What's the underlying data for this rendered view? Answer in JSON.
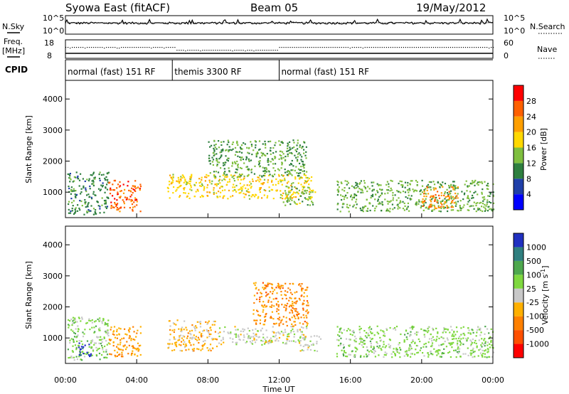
{
  "header": {
    "station": "Syowa East (fitACF)",
    "beam": "Beam 05",
    "date": "19/May/2012"
  },
  "noise_panel": {
    "left_label": "N.Sky",
    "right_label": "N.Search",
    "left_ticks": [
      "10^5",
      "10^0"
    ],
    "right_ticks": [
      "10^5",
      "10^0"
    ]
  },
  "freq_panel": {
    "left_label_line1": "Freq.",
    "left_label_line2": "[MHz]",
    "right_label": "Nave",
    "left_ticks": [
      "18",
      "8"
    ],
    "right_ticks": [
      "60",
      "0"
    ]
  },
  "cpid_panel": {
    "label": "CPID",
    "segments": [
      {
        "text": "normal (fast) 151 RF",
        "start_h": 0,
        "end_h": 6
      },
      {
        "text": "themis 3300 RF",
        "start_h": 6,
        "end_h": 12
      },
      {
        "text": "normal (fast) 151 RF",
        "start_h": 12,
        "end_h": 24
      }
    ]
  },
  "time_axis": {
    "label": "Time UT",
    "ticks": [
      "00:00",
      "04:00",
      "08:00",
      "12:00",
      "16:00",
      "20:00",
      "00:00"
    ]
  },
  "range_axis": {
    "label": "Slant Range [km]",
    "ticks": [
      "4000",
      "3000",
      "2000",
      "1000"
    ]
  },
  "power_colorbar": {
    "label": "Power [dB]",
    "ticks": [
      "28",
      "24",
      "20",
      "16",
      "12",
      "8",
      "4"
    ],
    "colors": [
      "#0000ff",
      "#1f3fa8",
      "#2e7f3f",
      "#7fbf3f",
      "#ffd800",
      "#ff9f00",
      "#ff6000",
      "#ff0000"
    ]
  },
  "velocity_colorbar": {
    "label": "Velocity [m s",
    "label_sup": "-1",
    "label_end": "]",
    "ticks": [
      "1000",
      "500",
      "100",
      "25",
      "-25",
      "-100",
      "-500",
      "-1000"
    ],
    "colors": [
      "#2030c0",
      "#2f7f7f",
      "#4ea84e",
      "#7fd83f",
      "#c8c8c8",
      "#ffb000",
      "#ff8000",
      "#ff5000",
      "#ff0000"
    ]
  },
  "chart_data": [
    {
      "type": "heatmap",
      "title": "Power",
      "xlabel": "Time UT",
      "ylabel": "Slant Range [km]",
      "xlim": [
        0,
        24
      ],
      "ylim": [
        180,
        4600
      ],
      "colorbar_label": "Power [dB]",
      "colorbar_range": [
        0,
        32
      ],
      "regions": [
        {
          "t0": 0.1,
          "t1": 2.4,
          "r0": 300,
          "r1": 1700,
          "value": 10
        },
        {
          "t0": 2.4,
          "t1": 4.2,
          "r0": 400,
          "r1": 1400,
          "value": 26
        },
        {
          "t0": 5.7,
          "t1": 13.8,
          "r0": 800,
          "r1": 1600,
          "value": 18
        },
        {
          "t0": 8.0,
          "t1": 13.5,
          "r0": 1500,
          "r1": 2700,
          "value": 12
        },
        {
          "t0": 12.2,
          "t1": 14.0,
          "r0": 600,
          "r1": 1200,
          "value": 14
        },
        {
          "t0": 15.2,
          "t1": 24.0,
          "r0": 400,
          "r1": 1400,
          "value": 13
        },
        {
          "t0": 20.0,
          "t1": 22.0,
          "r0": 500,
          "r1": 1200,
          "value": 24
        }
      ]
    },
    {
      "type": "heatmap",
      "title": "Velocity",
      "xlabel": "Time UT",
      "ylabel": "Slant Range [km]",
      "xlim": [
        0,
        24
      ],
      "ylim": [
        180,
        4600
      ],
      "colorbar_label": "Velocity [m s-1]",
      "colorbar_range": [
        -1000,
        1000
      ],
      "regions": [
        {
          "t0": 0.1,
          "t1": 2.4,
          "r0": 300,
          "r1": 1700,
          "value": 200
        },
        {
          "t0": 0.7,
          "t1": 1.4,
          "r0": 400,
          "r1": 900,
          "value": 900
        },
        {
          "t0": 2.4,
          "t1": 4.2,
          "r0": 400,
          "r1": 1400,
          "value": -300
        },
        {
          "t0": 5.7,
          "t1": 8.5,
          "r0": 600,
          "r1": 1600,
          "value": -200
        },
        {
          "t0": 8.5,
          "t1": 13.5,
          "r0": 800,
          "r1": 1400,
          "value": 0
        },
        {
          "t0": 10.5,
          "t1": 13.6,
          "r0": 1400,
          "r1": 2800,
          "value": -400
        },
        {
          "t0": 13.0,
          "t1": 14.3,
          "r0": 600,
          "r1": 1100,
          "value": 50
        },
        {
          "t0": 15.2,
          "t1": 24.0,
          "r0": 400,
          "r1": 1400,
          "value": 200
        }
      ]
    }
  ]
}
